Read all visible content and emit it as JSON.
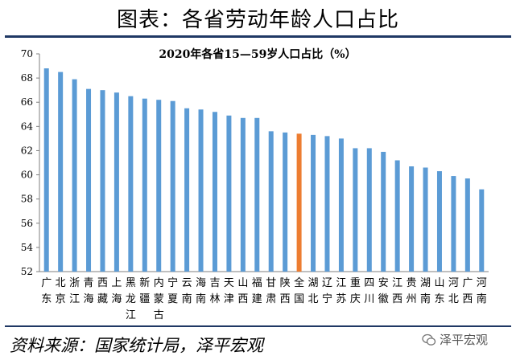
{
  "page_title": "图表：各省劳动年龄人口占比",
  "source_note": "资料来源：国家统计局，泽平宏观",
  "watermark": "泽平宏观",
  "colors": {
    "bar": "#5b9bd5",
    "highlight": "#ed7d31",
    "rule": "#1f3864"
  },
  "chart_data": {
    "type": "bar",
    "title": "2020年各省15—59岁人口占比（%）",
    "ylim": [
      52,
      70
    ],
    "yticks": [
      52,
      54,
      56,
      58,
      60,
      62,
      64,
      66,
      68,
      70
    ],
    "grid": false,
    "highlight_index": 18,
    "categories": [
      "广东",
      "北京",
      "浙江",
      "青海",
      "西藏",
      "上海",
      "黑龙江",
      "新疆",
      "内蒙古",
      "宁夏",
      "云南",
      "海南",
      "吉林",
      "天津",
      "山西",
      "福建",
      "甘肃",
      "陕西",
      "全国",
      "湖北",
      "辽宁",
      "江苏",
      "重庆",
      "四川",
      "安徽",
      "江西",
      "贵州",
      "湖南",
      "山东",
      "河北",
      "广西",
      "河南"
    ],
    "values": [
      68.8,
      68.5,
      67.9,
      67.1,
      67.0,
      66.8,
      66.5,
      66.3,
      66.2,
      66.1,
      65.5,
      65.4,
      65.2,
      64.9,
      64.7,
      64.7,
      63.6,
      63.5,
      63.4,
      63.3,
      63.2,
      63.0,
      62.2,
      62.2,
      61.9,
      61.2,
      60.7,
      60.6,
      60.3,
      59.9,
      59.7,
      58.8
    ]
  }
}
